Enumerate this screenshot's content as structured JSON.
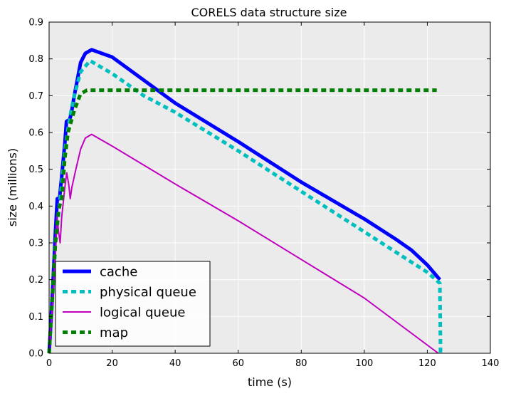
{
  "chart_data": {
    "type": "line",
    "title": "CORELS data structure size",
    "xlabel": "time (s)",
    "ylabel": "size (millions)",
    "xlim": [
      0,
      140
    ],
    "ylim": [
      0,
      0.9
    ],
    "xticks": [
      0,
      20,
      40,
      60,
      80,
      100,
      120,
      140
    ],
    "yticks": [
      0.0,
      0.1,
      0.2,
      0.3,
      0.4,
      0.5,
      0.6,
      0.7,
      0.8,
      0.9
    ],
    "xtick_labels": [
      "0",
      "20",
      "40",
      "60",
      "80",
      "100",
      "120",
      "140"
    ],
    "ytick_labels": [
      "0.0",
      "0.1",
      "0.2",
      "0.3",
      "0.4",
      "0.5",
      "0.6",
      "0.7",
      "0.8",
      "0.9"
    ],
    "grid": true,
    "legend_position": "lower-left",
    "series": [
      {
        "name": "cache",
        "color": "#0000ff",
        "style": "solid",
        "points": [
          [
            0,
            0
          ],
          [
            1,
            0.15
          ],
          [
            2,
            0.33
          ],
          [
            2.6,
            0.42
          ],
          [
            3.3,
            0.42
          ],
          [
            4,
            0.48
          ],
          [
            5,
            0.57
          ],
          [
            5.5,
            0.63
          ],
          [
            6.5,
            0.635
          ],
          [
            7,
            0.65
          ],
          [
            8,
            0.7
          ],
          [
            10,
            0.79
          ],
          [
            11.5,
            0.815
          ],
          [
            13.5,
            0.825
          ],
          [
            20,
            0.805
          ],
          [
            40,
            0.68
          ],
          [
            60,
            0.575
          ],
          [
            80,
            0.465
          ],
          [
            100,
            0.365
          ],
          [
            110,
            0.31
          ],
          [
            115,
            0.28
          ],
          [
            120,
            0.24
          ],
          [
            124,
            0.2
          ]
        ]
      },
      {
        "name": "physical queue",
        "color": "#00bfbf",
        "style": "dashed",
        "points": [
          [
            0,
            0
          ],
          [
            1,
            0.14
          ],
          [
            2,
            0.3
          ],
          [
            3,
            0.38
          ],
          [
            4,
            0.46
          ],
          [
            5,
            0.55
          ],
          [
            6,
            0.61
          ],
          [
            7,
            0.66
          ],
          [
            8,
            0.7
          ],
          [
            10,
            0.765
          ],
          [
            13,
            0.795
          ],
          [
            20,
            0.76
          ],
          [
            30,
            0.7
          ],
          [
            40,
            0.655
          ],
          [
            60,
            0.55
          ],
          [
            80,
            0.44
          ],
          [
            100,
            0.33
          ],
          [
            110,
            0.275
          ],
          [
            120,
            0.22
          ],
          [
            124,
            0.19
          ],
          [
            124.2,
            0.0
          ]
        ]
      },
      {
        "name": "logical queue",
        "color": "#bf00bf",
        "style": "solid",
        "points": [
          [
            0,
            0
          ],
          [
            1,
            0.12
          ],
          [
            2,
            0.28
          ],
          [
            2.5,
            0.37
          ],
          [
            3,
            0.33
          ],
          [
            3.5,
            0.3
          ],
          [
            4,
            0.37
          ],
          [
            5,
            0.45
          ],
          [
            5.6,
            0.49
          ],
          [
            6.2,
            0.46
          ],
          [
            6.7,
            0.42
          ],
          [
            7.2,
            0.45
          ],
          [
            8.5,
            0.5
          ],
          [
            10,
            0.555
          ],
          [
            11.5,
            0.585
          ],
          [
            13.5,
            0.595
          ],
          [
            20,
            0.563
          ],
          [
            40,
            0.46
          ],
          [
            60,
            0.36
          ],
          [
            80,
            0.255
          ],
          [
            100,
            0.15
          ],
          [
            123.5,
            0.0
          ]
        ]
      },
      {
        "name": "map",
        "color": "#008000",
        "style": "dashed",
        "points": [
          [
            0,
            0
          ],
          [
            1,
            0.15
          ],
          [
            2,
            0.3
          ],
          [
            3,
            0.39
          ],
          [
            4,
            0.42
          ],
          [
            5,
            0.53
          ],
          [
            6,
            0.6
          ],
          [
            8,
            0.66
          ],
          [
            10,
            0.705
          ],
          [
            12,
            0.715
          ],
          [
            14,
            0.715
          ],
          [
            123,
            0.715
          ]
        ]
      }
    ]
  }
}
